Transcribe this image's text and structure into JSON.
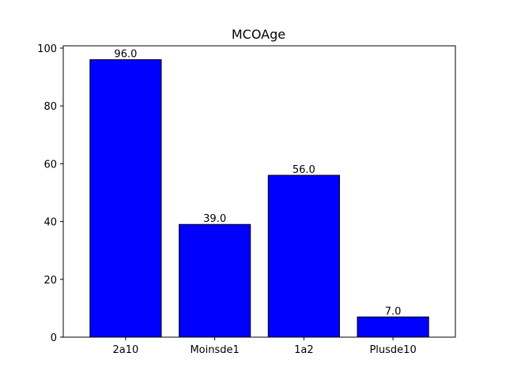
{
  "chart_data": {
    "type": "bar",
    "title": "MCOAge",
    "xlabel": "",
    "ylabel": "",
    "categories": [
      "2a10",
      "Moinsde1",
      "1a2",
      "Plusde10"
    ],
    "values": [
      96.0,
      39.0,
      56.0,
      7.0
    ],
    "data_labels": [
      "96.0",
      "39.0",
      "56.0",
      "7.0"
    ],
    "ylim": [
      0,
      100.8
    ],
    "yticks": [
      0,
      20,
      40,
      60,
      80,
      100
    ],
    "ytick_labels": [
      "0",
      "20",
      "40",
      "60",
      "80",
      "100"
    ],
    "grid": false,
    "legend": "none",
    "colors": {
      "bar_fill": "#0000ff",
      "bar_edge": "#000000",
      "axis": "#000000",
      "background": "#ffffff"
    }
  }
}
